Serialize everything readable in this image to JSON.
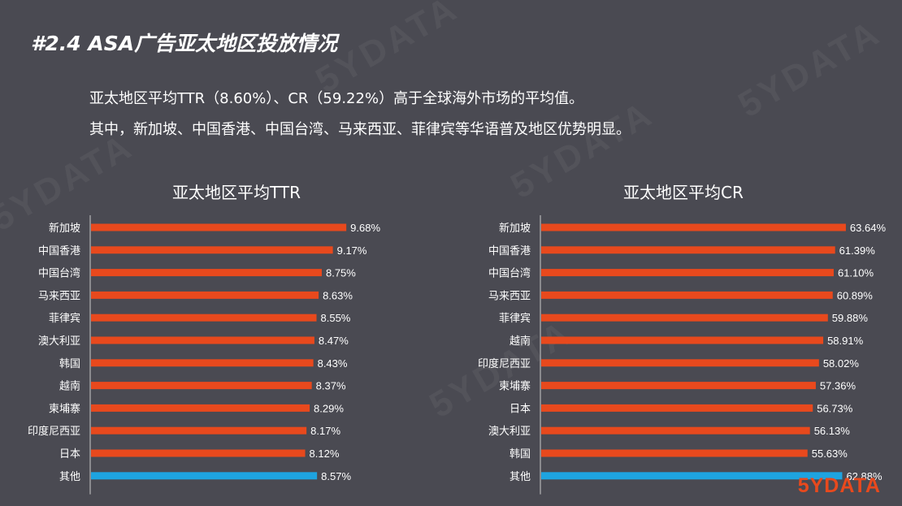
{
  "title": "#2.4 ASA广告亚太地区投放情况",
  "summary": {
    "line1": "亚太地区平均TTR（8.60%）、CR（59.22%）高于全球海外市场的平均值。",
    "line2": "其中，新加坡、中国香港、中国台湾、马来西亚、菲律宾等华语普及地区优势明显。"
  },
  "watermark": "5YDATA",
  "logo": {
    "text": "5YDATA"
  },
  "colors": {
    "bar": "#e8491d",
    "highlight": "#1ea4e0",
    "background": "#4a4a52",
    "axis": "#c9c9c9"
  },
  "chart_data": [
    {
      "type": "bar",
      "orientation": "horizontal",
      "title": "亚太地区平均TTR",
      "categories": [
        "新加坡",
        "中国香港",
        "中国台湾",
        "马来西亚",
        "菲律宾",
        "澳大利亚",
        "韩国",
        "越南",
        "柬埔寨",
        "印度尼西亚",
        "日本",
        "其他"
      ],
      "values": [
        9.68,
        9.17,
        8.75,
        8.63,
        8.55,
        8.47,
        8.43,
        8.37,
        8.29,
        8.17,
        8.12,
        8.57
      ],
      "labels": [
        "9.68%",
        "9.17%",
        "8.75%",
        "8.63%",
        "8.55%",
        "8.47%",
        "8.43%",
        "8.37%",
        "8.29%",
        "8.17%",
        "8.12%",
        "8.57%"
      ],
      "highlight_category": "其他",
      "xlim": [
        0,
        11.4
      ]
    },
    {
      "type": "bar",
      "orientation": "horizontal",
      "title": "亚太地区平均CR",
      "categories": [
        "新加坡",
        "中国香港",
        "中国台湾",
        "马来西亚",
        "菲律宾",
        "越南",
        "印度尼西亚",
        "柬埔寨",
        "日本",
        "澳大利亚",
        "韩国",
        "其他"
      ],
      "values": [
        63.64,
        61.39,
        61.1,
        60.89,
        59.88,
        58.91,
        58.02,
        57.36,
        56.73,
        56.13,
        55.63,
        62.88
      ],
      "labels": [
        "63.64%",
        "61.39%",
        "61.10%",
        "60.89%",
        "59.88%",
        "58.91%",
        "58.02%",
        "57.36%",
        "56.73%",
        "56.13%",
        "55.63%",
        "62.88%"
      ],
      "highlight_category": "其他",
      "xlim": [
        0,
        64.5
      ]
    }
  ]
}
